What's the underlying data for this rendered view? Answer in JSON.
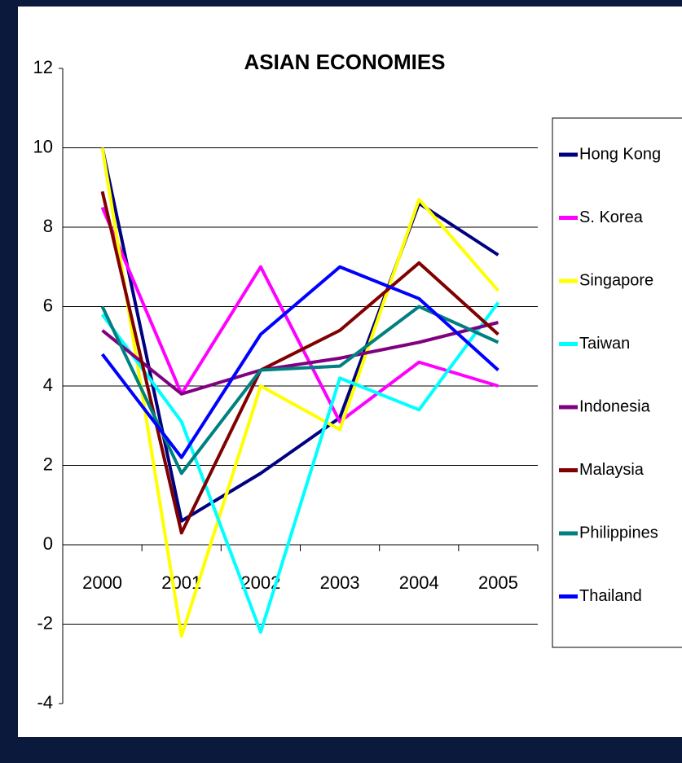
{
  "chart_data": {
    "type": "line",
    "title": "ASIAN ECONOMIES",
    "categories": [
      "2000",
      "2001",
      "2002",
      "2003",
      "2004",
      "2005"
    ],
    "series": [
      {
        "name": "Hong Kong",
        "color": "#000080",
        "values": [
          10.0,
          0.6,
          1.8,
          3.2,
          8.6,
          7.3
        ]
      },
      {
        "name": "S. Korea",
        "color": "#ff00ff",
        "values": [
          8.5,
          3.8,
          7.0,
          3.1,
          4.6,
          4.0
        ]
      },
      {
        "name": "Singapore",
        "color": "#ffff00",
        "values": [
          10.0,
          -2.3,
          4.0,
          2.9,
          8.7,
          6.4
        ]
      },
      {
        "name": "Taiwan",
        "color": "#00ffff",
        "values": [
          5.8,
          3.1,
          -2.2,
          4.2,
          3.4,
          6.1
        ]
      },
      {
        "name": "Indonesia",
        "color": "#800080",
        "values": [
          5.4,
          3.8,
          4.4,
          4.7,
          5.1,
          5.6
        ]
      },
      {
        "name": "Malaysia",
        "color": "#800000",
        "values": [
          8.9,
          0.3,
          4.4,
          5.4,
          7.1,
          5.3
        ]
      },
      {
        "name": "Philippines",
        "color": "#008080",
        "values": [
          6.0,
          1.8,
          4.4,
          4.5,
          6.0,
          5.1
        ]
      },
      {
        "name": "Thailand",
        "color": "#0000ff",
        "values": [
          4.8,
          2.2,
          5.3,
          7.0,
          6.2,
          4.4
        ]
      }
    ],
    "ylim": [
      -4,
      12
    ],
    "yticks": [
      -4,
      -2,
      0,
      2,
      4,
      6,
      8,
      10,
      12
    ],
    "grid": true,
    "legend": "right"
  }
}
